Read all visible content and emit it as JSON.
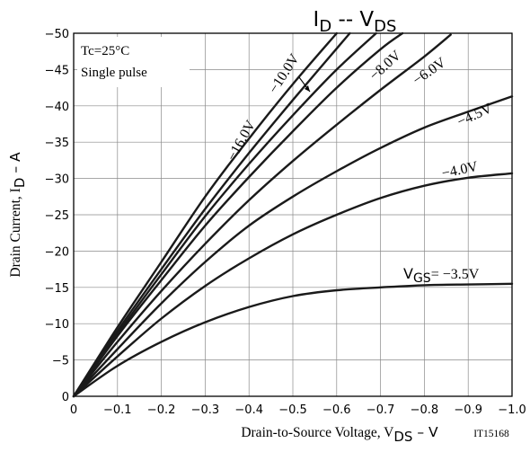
{
  "chart_data": {
    "type": "line",
    "title": {
      "main": "I",
      "sub": "D",
      "rest": " -- V",
      "sub2": "DS"
    },
    "xlabel": {
      "text": "Drain-to-Source Voltage, V",
      "sub": "DS",
      "unit": " – V"
    },
    "ylabel": {
      "text": "Drain Current, I",
      "sub": "D",
      "unit": " – A"
    },
    "figure_id": "IT15168",
    "conditions": [
      "Tc=25°C",
      "Single pulse"
    ],
    "xlim": [
      0,
      -1.0
    ],
    "ylim": [
      0,
      -50
    ],
    "x_ticks": [
      0,
      -0.1,
      -0.2,
      -0.3,
      -0.4,
      -0.5,
      -0.6,
      -0.7,
      -0.8,
      -0.9,
      -1.0
    ],
    "x_tick_labels": [
      "0",
      "−0.1",
      "−0.2",
      "−0.3",
      "−0.4",
      "−0.5",
      "−0.6",
      "−0.7",
      "−0.8",
      "−0.9",
      "−1.0"
    ],
    "y_ticks": [
      0,
      -5,
      -10,
      -15,
      -20,
      -25,
      -30,
      -35,
      -40,
      -45,
      -50
    ],
    "y_tick_labels": [
      "0",
      "−5",
      "−10",
      "−15",
      "−20",
      "−25",
      "−30",
      "−35",
      "−40",
      "−45",
      "−50"
    ],
    "grid": true,
    "series": [
      {
        "name": "−16.0V",
        "x": [
          0,
          -0.1,
          -0.2,
          -0.3,
          -0.4,
          -0.5,
          -0.6
        ],
        "y": [
          0,
          -9.5,
          -18.5,
          -27.5,
          -35.5,
          -43,
          -50
        ]
      },
      {
        "name": "−10.0V",
        "x": [
          0,
          -0.1,
          -0.2,
          -0.3,
          -0.4,
          -0.5,
          -0.63
        ],
        "y": [
          0,
          -9.0,
          -17.5,
          -25.8,
          -33.5,
          -40.8,
          -50
        ]
      },
      {
        "name": "",
        "x": [
          0,
          -0.1,
          -0.2,
          -0.3,
          -0.4,
          -0.5,
          -0.6,
          -0.69
        ],
        "y": [
          0,
          -8.6,
          -16.8,
          -24.8,
          -32,
          -38.7,
          -45,
          -50
        ]
      },
      {
        "name": "−8.0V",
        "x": [
          0,
          -0.1,
          -0.2,
          -0.3,
          -0.4,
          -0.5,
          -0.6,
          -0.7,
          -0.75
        ],
        "y": [
          0,
          -8.3,
          -16,
          -23.5,
          -30.2,
          -36.5,
          -42.5,
          -47.8,
          -50
        ]
      },
      {
        "name": "−6.0V",
        "x": [
          0,
          -0.1,
          -0.2,
          -0.3,
          -0.4,
          -0.5,
          -0.6,
          -0.7,
          -0.8,
          -0.86
        ],
        "y": [
          0,
          -7.5,
          -14.5,
          -21,
          -27,
          -32.4,
          -37.4,
          -42.2,
          -46.8,
          -49.8
        ]
      },
      {
        "name": "−4.5V",
        "x": [
          0,
          -0.1,
          -0.2,
          -0.3,
          -0.4,
          -0.5,
          -0.6,
          -0.7,
          -0.8,
          -0.9,
          -1.0
        ],
        "y": [
          0,
          -6.5,
          -12.8,
          -18.5,
          -23.5,
          -27.5,
          -31,
          -34.2,
          -37,
          -39.2,
          -41.3
        ]
      },
      {
        "name": "−4.0V",
        "x": [
          0,
          -0.1,
          -0.2,
          -0.3,
          -0.4,
          -0.5,
          -0.6,
          -0.7,
          -0.8,
          -0.9,
          -1.0
        ],
        "y": [
          0,
          -5.5,
          -10.7,
          -15.2,
          -19,
          -22.3,
          -25,
          -27.3,
          -29,
          -30.1,
          -30.7
        ]
      },
      {
        "name": "V",
        "name_sub": "GS",
        "name_rest": "= −3.5V",
        "x": [
          0,
          -0.1,
          -0.2,
          -0.3,
          -0.4,
          -0.5,
          -0.6,
          -0.7,
          -0.8,
          -0.9,
          -1.0
        ],
        "y": [
          0,
          -4.2,
          -7.5,
          -10.2,
          -12.3,
          -13.8,
          -14.6,
          -15,
          -15.3,
          -15.4,
          -15.5
        ]
      }
    ]
  }
}
